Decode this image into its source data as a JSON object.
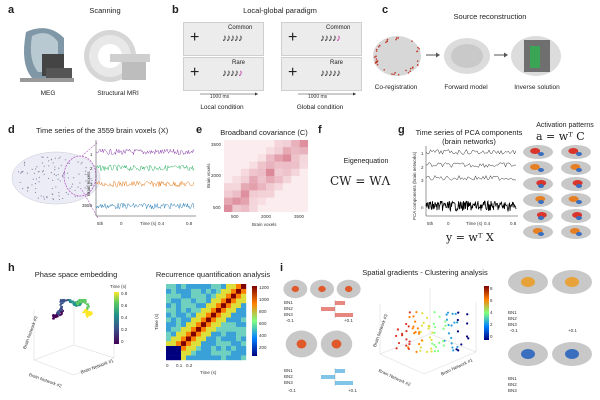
{
  "panels": {
    "a": {
      "label": "a",
      "title": "Scanning",
      "cap_meg": "MEG",
      "cap_mri": "Structural MRI"
    },
    "b": {
      "label": "b",
      "title": "Local-global paradigm",
      "common": "Common",
      "rare": "Rare",
      "plus": "+",
      "duration": "1000 ms",
      "cap_local": "Local condition",
      "cap_global": "Global condition"
    },
    "c": {
      "label": "c",
      "title": "Source reconstruction",
      "cap_coreg": "Co-registration",
      "cap_forward": "Forward model",
      "cap_inverse": "Inverse solution"
    },
    "d": {
      "label": "d",
      "title": "Time series of the 3559 brain voxels (X)",
      "ylabel": "Brain voxels",
      "xlabel": "Time (s)",
      "row_labels": [
        "1",
        "2",
        "3",
        "3559"
      ],
      "x_ticks": [
        "0",
        "0.2",
        "0.4",
        "0.6",
        "0.8"
      ],
      "scale": "5th"
    },
    "e": {
      "label": "e",
      "title": "Broadband covariance (C)",
      "ylabel": "Brain voxels",
      "xlabel": "Brain voxels",
      "y_ticks": [
        "3500",
        "2000",
        "500"
      ],
      "x_ticks": [
        "500",
        "2000",
        "3500"
      ]
    },
    "f": {
      "label": "f",
      "above": "Eigenequation",
      "eq": "CW = WΛ"
    },
    "g": {
      "label": "g",
      "title_l1": "Time series of PCA components",
      "title_l2": "(brain networks)",
      "ylabel": "PCA components (brain networks)",
      "xlabel": "Time (s)",
      "row_labels": [
        "1",
        "2",
        "3",
        "n"
      ],
      "x_ticks": [
        "0",
        "0.2",
        "0.4",
        "0.6",
        "0.8"
      ],
      "scale": "5th",
      "eq_y": "y = wᵀ X",
      "act_title": "Activation patterns",
      "eq_a": "a = wᵀ C"
    },
    "h": {
      "label": "h",
      "title_pse": "Phase space embedding",
      "title_rqa": "Recurrence quantification analysis",
      "axis_bn1": "Brain Network #1",
      "axis_bn2": "Brain Network #2",
      "axis_bn3": "Brain Network #3",
      "time_label": "Time (s)",
      "cb_ticks": [
        "0.8",
        "0.6",
        "0.4",
        "0.2",
        "0"
      ],
      "rqa_ylabel": "Time (s)",
      "rqa_xlabel": "Time (s)",
      "rqa_x_ticks": [
        "0",
        "0.1",
        "0.2"
      ],
      "rqa_cb_ticks": [
        "1200",
        "1000",
        "800",
        "600",
        "400",
        "200"
      ]
    },
    "i": {
      "label": "i",
      "title": "Spatial gradients - Clustering analysis",
      "bn_labels": [
        "BN1",
        "BN2",
        "BN3"
      ],
      "axis_bn1": "Brain Network #1",
      "axis_bn2": "Brain Network #2",
      "axis_bn3": "Brain Network #3",
      "tick_pos": "+0.1",
      "tick_neg": "-0.1",
      "cb_ticks": [
        "8",
        "6",
        "4",
        "2",
        "0"
      ]
    }
  }
}
